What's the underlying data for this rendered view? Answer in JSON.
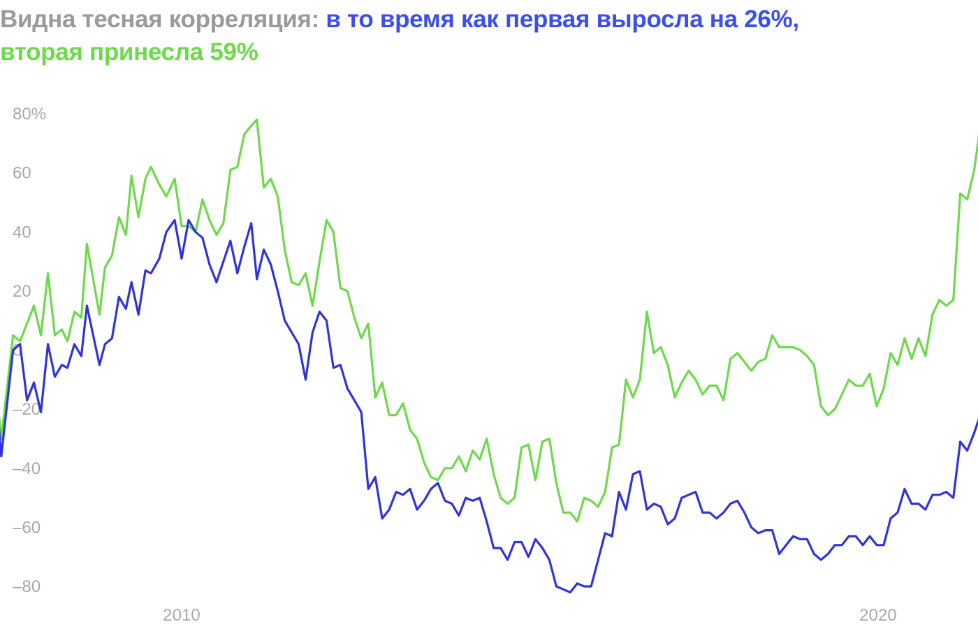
{
  "title": {
    "part1": "Видна тесная корреляция: ",
    "part2": "в то время как первая выросла на 26%,",
    "part3": "вторая принесла 59%",
    "color_part1": "#9a9a9a",
    "color_part2": "#3b4ef0",
    "color_part3": "#6ed94a"
  },
  "chart_data": {
    "type": "line",
    "title": "Видна тесная корреляция: в то время как первая выросла на 26%, вторая принесла 59%",
    "xlabel": "",
    "ylabel": "",
    "ylim": [
      -90,
      85
    ],
    "xlim": [
      2007.3,
      2021.75
    ],
    "grid": false,
    "y_ticks": [
      {
        "value": 80,
        "label": "80%"
      },
      {
        "value": 60,
        "label": "60"
      },
      {
        "value": 40,
        "label": "40"
      },
      {
        "value": 20,
        "label": "20"
      },
      {
        "value": 0,
        "label": "0"
      },
      {
        "value": -20,
        "label": "–20"
      },
      {
        "value": -40,
        "label": "–40"
      },
      {
        "value": -60,
        "label": "–60"
      },
      {
        "value": -80,
        "label": "–80"
      }
    ],
    "x_ticks": [
      {
        "value": 2010,
        "label": "2010"
      },
      {
        "value": 2020,
        "label": "2020"
      }
    ],
    "series": [
      {
        "color": "#6ed94a",
        "points": [
          [
            2007.33,
            -11
          ],
          [
            2007.41,
            -30
          ],
          [
            2007.58,
            5
          ],
          [
            2007.68,
            3
          ],
          [
            2007.88,
            15
          ],
          [
            2007.98,
            5
          ],
          [
            2008.08,
            26
          ],
          [
            2008.18,
            5
          ],
          [
            2008.28,
            7
          ],
          [
            2008.36,
            3
          ],
          [
            2008.46,
            13
          ],
          [
            2008.56,
            11
          ],
          [
            2008.64,
            36
          ],
          [
            2008.82,
            12
          ],
          [
            2008.9,
            28
          ],
          [
            2009.0,
            32
          ],
          [
            2009.1,
            45
          ],
          [
            2009.2,
            39
          ],
          [
            2009.28,
            59
          ],
          [
            2009.38,
            45
          ],
          [
            2009.48,
            58
          ],
          [
            2009.56,
            62
          ],
          [
            2009.68,
            56
          ],
          [
            2009.78,
            52
          ],
          [
            2009.9,
            58
          ],
          [
            2010.0,
            42
          ],
          [
            2010.1,
            42
          ],
          [
            2010.2,
            40
          ],
          [
            2010.3,
            51
          ],
          [
            2010.4,
            44
          ],
          [
            2010.5,
            39
          ],
          [
            2010.6,
            43
          ],
          [
            2010.7,
            61
          ],
          [
            2010.8,
            62
          ],
          [
            2010.9,
            73
          ],
          [
            2011.0,
            76
          ],
          [
            2011.08,
            78
          ],
          [
            2011.18,
            55
          ],
          [
            2011.28,
            58
          ],
          [
            2011.38,
            52
          ],
          [
            2011.48,
            34
          ],
          [
            2011.58,
            23
          ],
          [
            2011.68,
            22
          ],
          [
            2011.78,
            26
          ],
          [
            2011.88,
            15
          ],
          [
            2011.98,
            30
          ],
          [
            2012.08,
            44
          ],
          [
            2012.18,
            40
          ],
          [
            2012.28,
            21
          ],
          [
            2012.38,
            20
          ],
          [
            2012.48,
            11
          ],
          [
            2012.58,
            4
          ],
          [
            2012.68,
            9
          ],
          [
            2012.78,
            -16
          ],
          [
            2012.88,
            -11
          ],
          [
            2012.98,
            -22
          ],
          [
            2013.08,
            -22
          ],
          [
            2013.18,
            -18
          ],
          [
            2013.28,
            -27
          ],
          [
            2013.38,
            -30
          ],
          [
            2013.48,
            -38
          ],
          [
            2013.58,
            -43
          ],
          [
            2013.68,
            -44
          ],
          [
            2013.78,
            -40
          ],
          [
            2013.88,
            -40
          ],
          [
            2013.98,
            -36
          ],
          [
            2014.08,
            -41
          ],
          [
            2014.18,
            -34
          ],
          [
            2014.28,
            -37
          ],
          [
            2014.38,
            -30
          ],
          [
            2014.48,
            -42
          ],
          [
            2014.58,
            -50
          ],
          [
            2014.68,
            -52
          ],
          [
            2014.78,
            -50
          ],
          [
            2014.88,
            -33
          ],
          [
            2014.98,
            -32
          ],
          [
            2015.08,
            -44
          ],
          [
            2015.18,
            -31
          ],
          [
            2015.28,
            -30
          ],
          [
            2015.38,
            -45
          ],
          [
            2015.48,
            -55
          ],
          [
            2015.58,
            -55
          ],
          [
            2015.68,
            -58
          ],
          [
            2015.78,
            -50
          ],
          [
            2015.88,
            -51
          ],
          [
            2015.98,
            -53
          ],
          [
            2016.08,
            -48
          ],
          [
            2016.18,
            -33
          ],
          [
            2016.28,
            -32
          ],
          [
            2016.38,
            -10
          ],
          [
            2016.48,
            -16
          ],
          [
            2016.58,
            -10
          ],
          [
            2016.68,
            13
          ],
          [
            2016.78,
            -1
          ],
          [
            2016.88,
            1
          ],
          [
            2016.98,
            -5
          ],
          [
            2017.08,
            -16
          ],
          [
            2017.18,
            -11
          ],
          [
            2017.28,
            -7
          ],
          [
            2017.38,
            -10
          ],
          [
            2017.48,
            -15
          ],
          [
            2017.58,
            -12
          ],
          [
            2017.68,
            -12
          ],
          [
            2017.78,
            -17
          ],
          [
            2017.88,
            -3
          ],
          [
            2017.98,
            -1
          ],
          [
            2018.08,
            -4
          ],
          [
            2018.18,
            -7
          ],
          [
            2018.28,
            -4
          ],
          [
            2018.38,
            -3
          ],
          [
            2018.48,
            5
          ],
          [
            2018.58,
            1
          ],
          [
            2018.68,
            1
          ],
          [
            2018.78,
            1
          ],
          [
            2018.88,
            0
          ],
          [
            2018.98,
            -2
          ],
          [
            2019.08,
            -5
          ],
          [
            2019.18,
            -19
          ],
          [
            2019.28,
            -22
          ],
          [
            2019.38,
            -20
          ],
          [
            2019.48,
            -15
          ],
          [
            2019.58,
            -10
          ],
          [
            2019.68,
            -12
          ],
          [
            2019.78,
            -12
          ],
          [
            2019.88,
            -8
          ],
          [
            2019.98,
            -19
          ],
          [
            2020.08,
            -13
          ],
          [
            2020.18,
            -1
          ],
          [
            2020.28,
            -5
          ],
          [
            2020.38,
            4
          ],
          [
            2020.48,
            -3
          ],
          [
            2020.58,
            4
          ],
          [
            2020.68,
            -2
          ],
          [
            2020.78,
            12
          ],
          [
            2020.88,
            17
          ],
          [
            2020.98,
            15
          ],
          [
            2021.08,
            17
          ],
          [
            2021.18,
            53
          ],
          [
            2021.28,
            51
          ],
          [
            2021.38,
            61
          ],
          [
            2021.48,
            78
          ],
          [
            2021.58,
            72
          ],
          [
            2021.74,
            59
          ]
        ]
      },
      {
        "color": "#3033d8",
        "points": [
          [
            2007.33,
            -13
          ],
          [
            2007.41,
            -36
          ],
          [
            2007.58,
            0
          ],
          [
            2007.68,
            2
          ],
          [
            2007.78,
            -17
          ],
          [
            2007.88,
            -11
          ],
          [
            2007.98,
            -21
          ],
          [
            2008.08,
            2
          ],
          [
            2008.18,
            -9
          ],
          [
            2008.28,
            -5
          ],
          [
            2008.36,
            -6
          ],
          [
            2008.46,
            2
          ],
          [
            2008.56,
            -2
          ],
          [
            2008.64,
            15
          ],
          [
            2008.82,
            -5
          ],
          [
            2008.9,
            2
          ],
          [
            2009.0,
            4
          ],
          [
            2009.1,
            18
          ],
          [
            2009.2,
            14
          ],
          [
            2009.28,
            23
          ],
          [
            2009.38,
            12
          ],
          [
            2009.48,
            27
          ],
          [
            2009.56,
            26
          ],
          [
            2009.68,
            31
          ],
          [
            2009.78,
            40
          ],
          [
            2009.9,
            44
          ],
          [
            2010.0,
            31
          ],
          [
            2010.1,
            44
          ],
          [
            2010.2,
            40
          ],
          [
            2010.3,
            38
          ],
          [
            2010.4,
            29
          ],
          [
            2010.5,
            23
          ],
          [
            2010.6,
            30
          ],
          [
            2010.7,
            37
          ],
          [
            2010.8,
            26
          ],
          [
            2010.9,
            35
          ],
          [
            2011.0,
            43
          ],
          [
            2011.08,
            24
          ],
          [
            2011.18,
            34
          ],
          [
            2011.28,
            29
          ],
          [
            2011.38,
            20
          ],
          [
            2011.48,
            10
          ],
          [
            2011.58,
            6
          ],
          [
            2011.68,
            2
          ],
          [
            2011.78,
            -10
          ],
          [
            2011.88,
            6
          ],
          [
            2011.98,
            13
          ],
          [
            2012.08,
            10
          ],
          [
            2012.18,
            -6
          ],
          [
            2012.28,
            -5
          ],
          [
            2012.38,
            -13
          ],
          [
            2012.48,
            -17
          ],
          [
            2012.58,
            -21
          ],
          [
            2012.68,
            -47
          ],
          [
            2012.78,
            -43
          ],
          [
            2012.88,
            -57
          ],
          [
            2012.98,
            -54
          ],
          [
            2013.08,
            -48
          ],
          [
            2013.18,
            -49
          ],
          [
            2013.28,
            -47
          ],
          [
            2013.38,
            -54
          ],
          [
            2013.48,
            -51
          ],
          [
            2013.58,
            -47
          ],
          [
            2013.68,
            -45
          ],
          [
            2013.78,
            -51
          ],
          [
            2013.88,
            -52
          ],
          [
            2013.98,
            -56
          ],
          [
            2014.08,
            -50
          ],
          [
            2014.18,
            -51
          ],
          [
            2014.28,
            -50
          ],
          [
            2014.38,
            -58
          ],
          [
            2014.48,
            -67
          ],
          [
            2014.58,
            -67
          ],
          [
            2014.68,
            -71
          ],
          [
            2014.78,
            -65
          ],
          [
            2014.88,
            -65
          ],
          [
            2014.98,
            -70
          ],
          [
            2015.08,
            -64
          ],
          [
            2015.18,
            -67
          ],
          [
            2015.28,
            -71
          ],
          [
            2015.38,
            -80
          ],
          [
            2015.48,
            -81
          ],
          [
            2015.58,
            -82
          ],
          [
            2015.68,
            -79
          ],
          [
            2015.78,
            -80
          ],
          [
            2015.88,
            -80
          ],
          [
            2015.98,
            -71
          ],
          [
            2016.08,
            -62
          ],
          [
            2016.18,
            -63
          ],
          [
            2016.28,
            -48
          ],
          [
            2016.38,
            -54
          ],
          [
            2016.48,
            -42
          ],
          [
            2016.58,
            -41
          ],
          [
            2016.68,
            -54
          ],
          [
            2016.78,
            -52
          ],
          [
            2016.88,
            -53
          ],
          [
            2016.98,
            -59
          ],
          [
            2017.08,
            -57
          ],
          [
            2017.18,
            -50
          ],
          [
            2017.28,
            -49
          ],
          [
            2017.38,
            -48
          ],
          [
            2017.48,
            -55
          ],
          [
            2017.58,
            -55
          ],
          [
            2017.68,
            -57
          ],
          [
            2017.78,
            -55
          ],
          [
            2017.88,
            -52
          ],
          [
            2017.98,
            -51
          ],
          [
            2018.08,
            -55
          ],
          [
            2018.18,
            -60
          ],
          [
            2018.28,
            -62
          ],
          [
            2018.38,
            -61
          ],
          [
            2018.48,
            -61
          ],
          [
            2018.58,
            -69
          ],
          [
            2018.68,
            -66
          ],
          [
            2018.78,
            -63
          ],
          [
            2018.88,
            -64
          ],
          [
            2018.98,
            -64
          ],
          [
            2019.08,
            -69
          ],
          [
            2019.18,
            -71
          ],
          [
            2019.28,
            -69
          ],
          [
            2019.38,
            -66
          ],
          [
            2019.48,
            -66
          ],
          [
            2019.58,
            -63
          ],
          [
            2019.68,
            -63
          ],
          [
            2019.78,
            -66
          ],
          [
            2019.88,
            -63
          ],
          [
            2019.98,
            -66
          ],
          [
            2020.08,
            -66
          ],
          [
            2020.18,
            -57
          ],
          [
            2020.28,
            -55
          ],
          [
            2020.38,
            -47
          ],
          [
            2020.48,
            -52
          ],
          [
            2020.58,
            -52
          ],
          [
            2020.68,
            -54
          ],
          [
            2020.78,
            -49
          ],
          [
            2020.88,
            -49
          ],
          [
            2020.98,
            -48
          ],
          [
            2021.08,
            -50
          ],
          [
            2021.18,
            -31
          ],
          [
            2021.28,
            -34
          ],
          [
            2021.38,
            -28
          ],
          [
            2021.48,
            -21
          ],
          [
            2021.58,
            -20
          ],
          [
            2021.74,
            -26
          ]
        ]
      }
    ]
  }
}
